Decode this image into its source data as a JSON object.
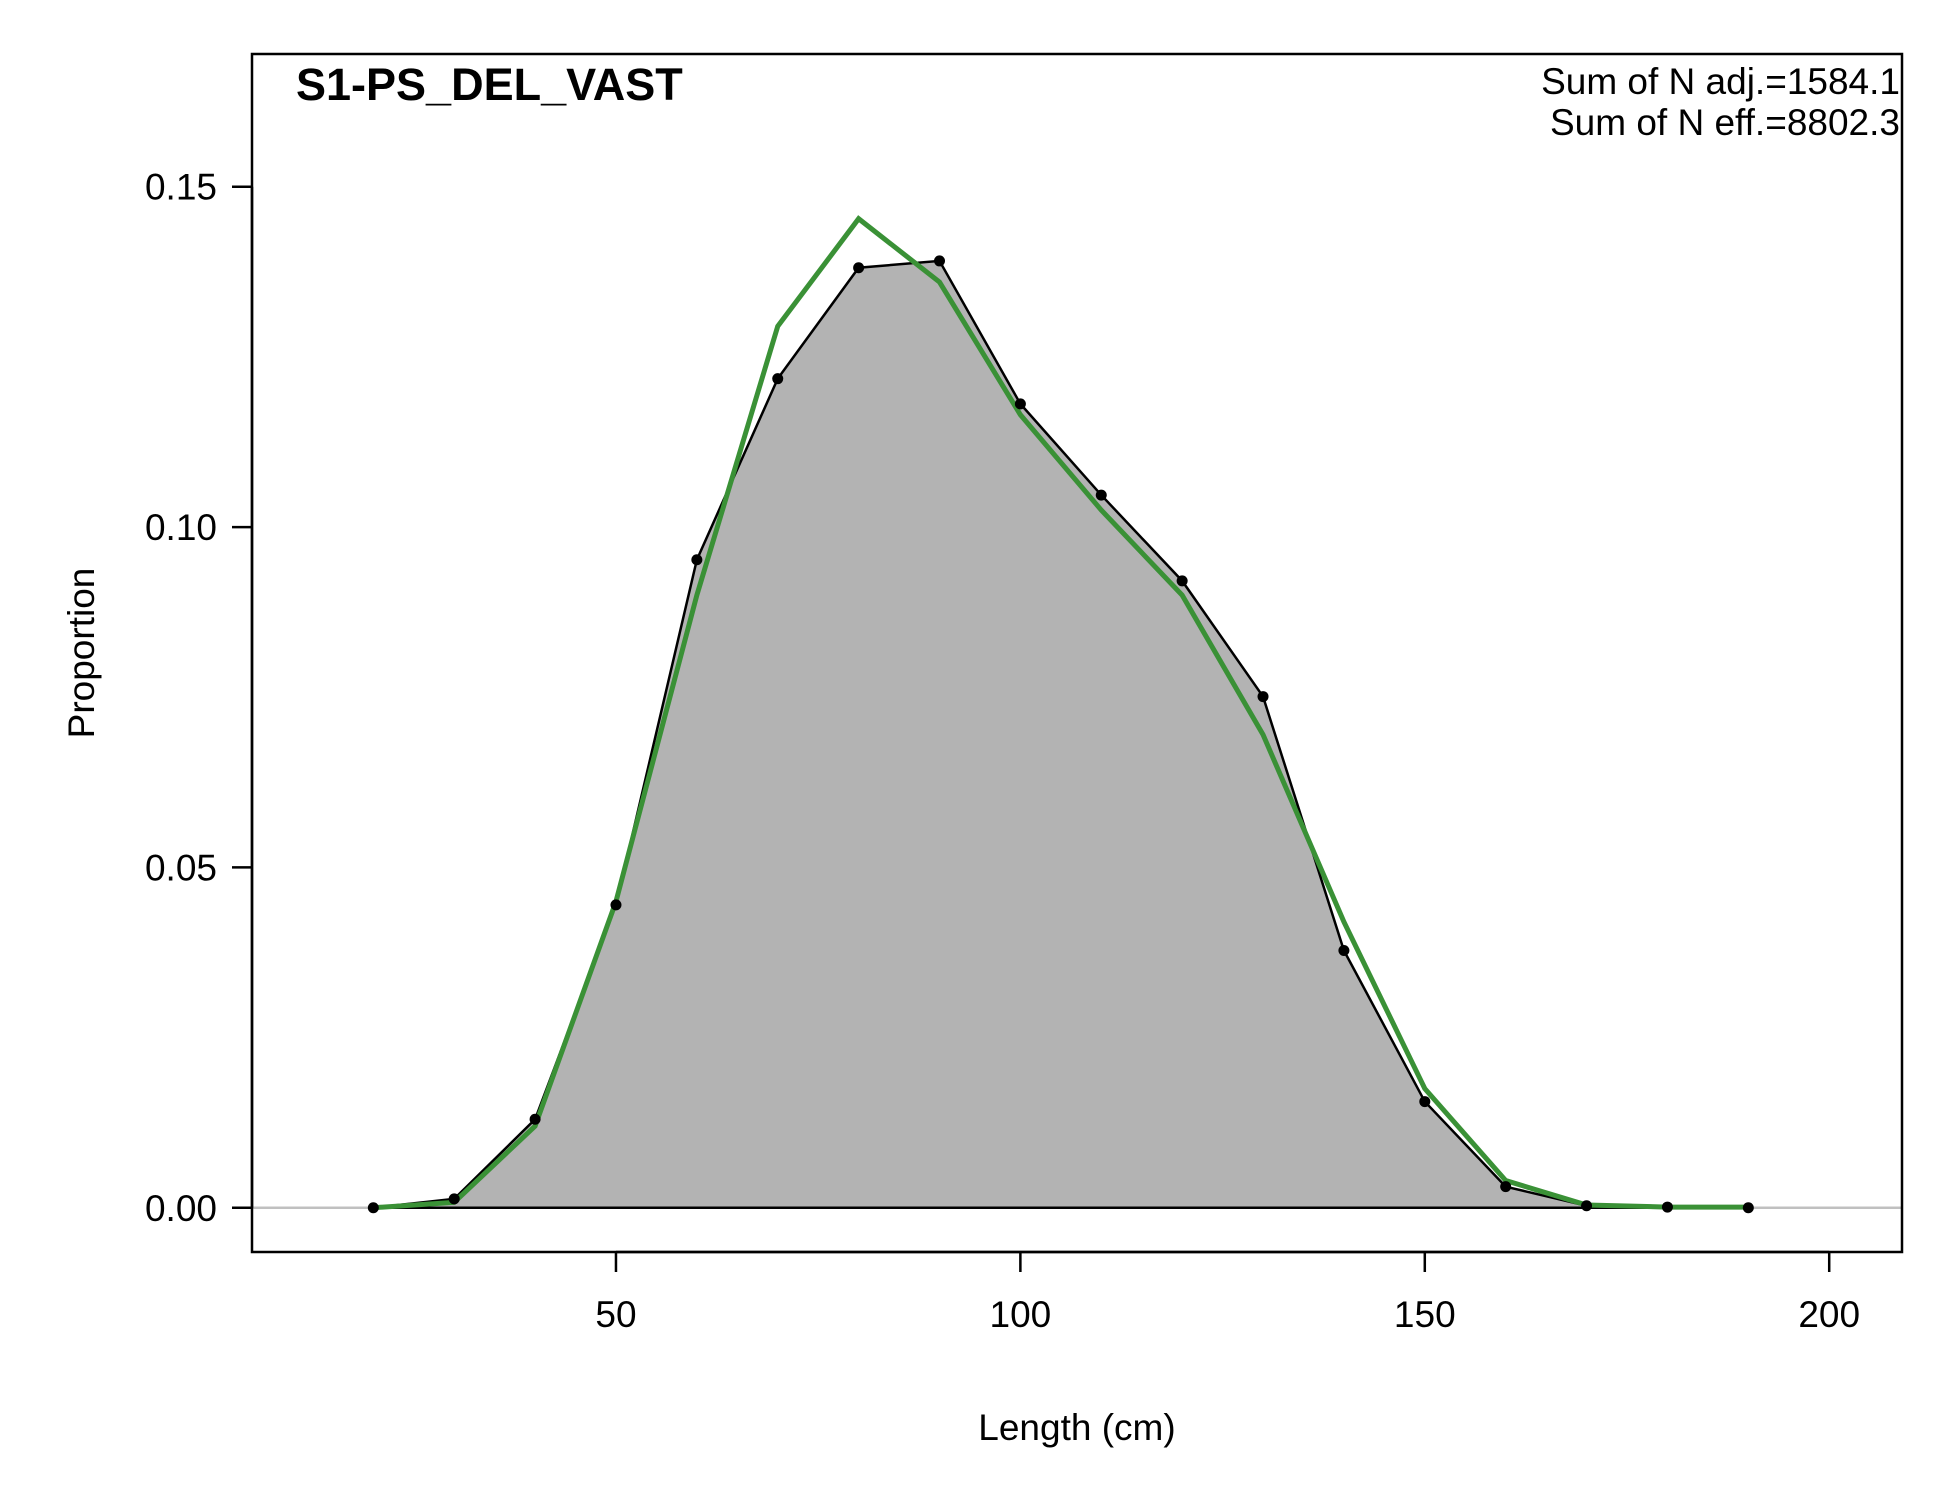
{
  "chart_data": {
    "type": "area",
    "title": "S1-PS_DEL_VAST",
    "xlabel": "Length (cm)",
    "ylabel": "Proportion",
    "xlim": [
      5,
      209
    ],
    "ylim": [
      -0.0065,
      0.1695
    ],
    "x_ticks": [
      50,
      100,
      150,
      200
    ],
    "x_tick_labels": [
      "50",
      "100",
      "150",
      "200"
    ],
    "y_ticks": [
      0,
      0.05,
      0.1,
      0.15
    ],
    "y_tick_labels": [
      "0.00",
      "0.05",
      "0.10",
      "0.15"
    ],
    "grid": false,
    "annotations": [
      "Sum of N adj.=1584.1",
      "Sum of N eff.=8802.3"
    ],
    "series": [
      {
        "style": "area+points",
        "color": "#000000",
        "fill": "#b3b3b3",
        "x": [
          20,
          30,
          40,
          50,
          60,
          70,
          80,
          90,
          100,
          110,
          120,
          130,
          140,
          150,
          160,
          170,
          180,
          190
        ],
        "y": [
          0.0,
          0.0013,
          0.013,
          0.0445,
          0.0952,
          0.1218,
          0.1381,
          0.1391,
          0.1181,
          0.1047,
          0.0921,
          0.0751,
          0.0378,
          0.0156,
          0.0031,
          0.0003,
          0.0001,
          0.0
        ]
      },
      {
        "style": "line",
        "color": "#3a9136",
        "x": [
          20,
          30,
          40,
          50,
          60,
          70,
          80,
          90,
          100,
          110,
          120,
          130,
          140,
          150,
          160,
          170,
          180,
          190
        ],
        "y": [
          0.0,
          0.0008,
          0.012,
          0.045,
          0.09,
          0.1295,
          0.1453,
          0.136,
          0.1165,
          0.1025,
          0.09,
          0.0695,
          0.042,
          0.0175,
          0.004,
          0.0004,
          0.0001,
          0.0001
        ]
      }
    ]
  }
}
